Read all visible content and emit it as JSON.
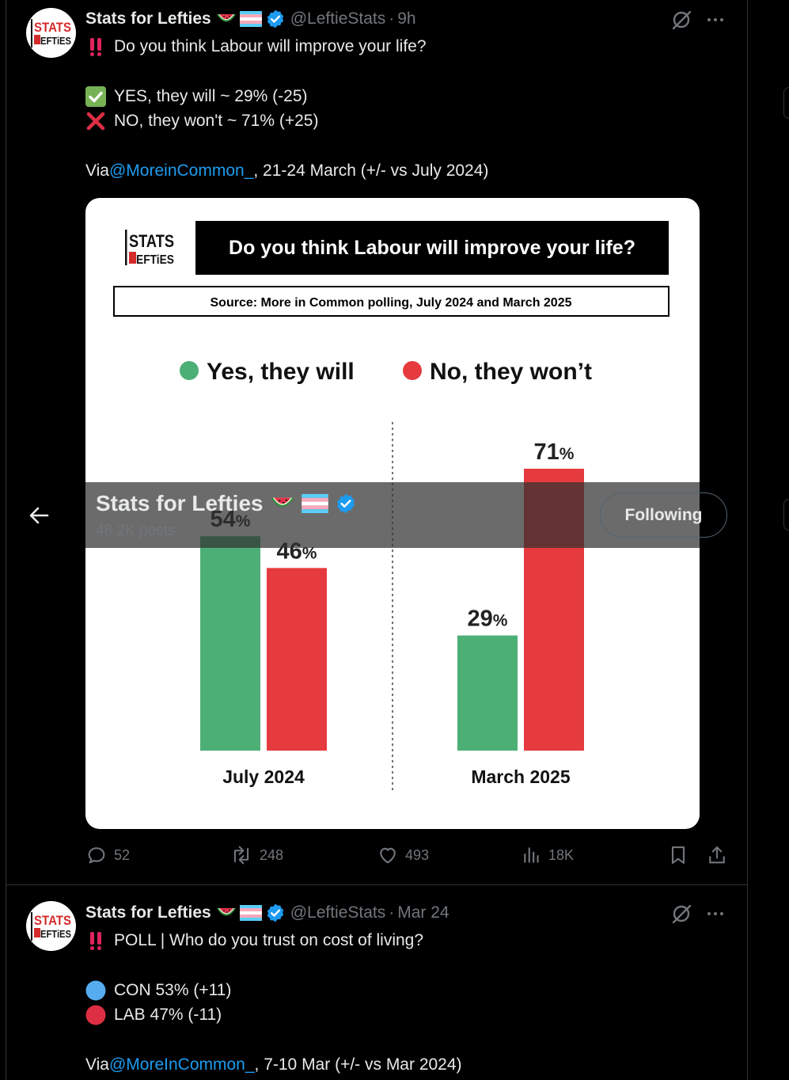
{
  "colors": {
    "yes": "#4caf76",
    "no": "#e53b3e",
    "link": "#1d9bf0",
    "muted": "#71767b"
  },
  "tweet1": {
    "author": "Stats for Lefties",
    "handle": "@LeftieStats",
    "separator": "·",
    "time": "9h",
    "headline": "Do you think Labour will improve your life?",
    "yes_line": "YES, they will ~ 29% (-25)",
    "no_line": "NO, they won't ~ 71% (+25)",
    "via_prefix": "Via ",
    "via_mention": "@MoreinCommon_",
    "via_rest": ", 21-24 March (+/- vs July 2024)",
    "stats": {
      "replies": "52",
      "reposts": "248",
      "likes": "493",
      "views": "18K"
    }
  },
  "infographic": {
    "logo_top": "STATS",
    "logo_bottom": "EFTiES",
    "title": "Do you think Labour will improve your life?",
    "source": "Source: More in Common polling, July 2024 and March 2025",
    "legend_yes": "Yes, they will",
    "legend_no": "No, they won’t"
  },
  "chart_data": {
    "type": "bar",
    "title": "Do you think Labour will improve your life?",
    "categories": [
      "July 2024",
      "March 2025"
    ],
    "series": [
      {
        "name": "Yes, they will",
        "values": [
          54,
          29
        ]
      },
      {
        "name": "No, they won’t",
        "values": [
          46,
          71
        ]
      }
    ],
    "value_suffix": "%",
    "ylim": [
      0,
      71
    ],
    "grid": false,
    "legend": "top"
  },
  "sticky_header": {
    "name": "Stats for Lefties",
    "posts": "48.2K posts",
    "follow_label": "Following"
  },
  "tweet2": {
    "author": "Stats for Lefties",
    "handle": "@LeftieStats",
    "separator": "·",
    "time": "Mar 24",
    "headline": "POLL | Who do you trust on cost of living?",
    "con_line": "CON 53% (+11)",
    "lab_line": "LAB 47% (-11)",
    "via_prefix": "Via ",
    "via_mention": "@MoreInCommon_",
    "via_rest": ", 7-10 Mar (+/- vs Mar 2024)"
  },
  "icons": [
    "grok-icon",
    "more-icon",
    "reply-icon",
    "repost-icon",
    "like-icon",
    "views-icon",
    "bookmark-icon",
    "share-icon",
    "back-arrow-icon",
    "verified-icon",
    "watermelon-icon",
    "trans-flag-icon",
    "double-exclamation-icon",
    "check-mark-icon",
    "cross-mark-icon",
    "blue-circle-icon",
    "red-circle-icon"
  ]
}
